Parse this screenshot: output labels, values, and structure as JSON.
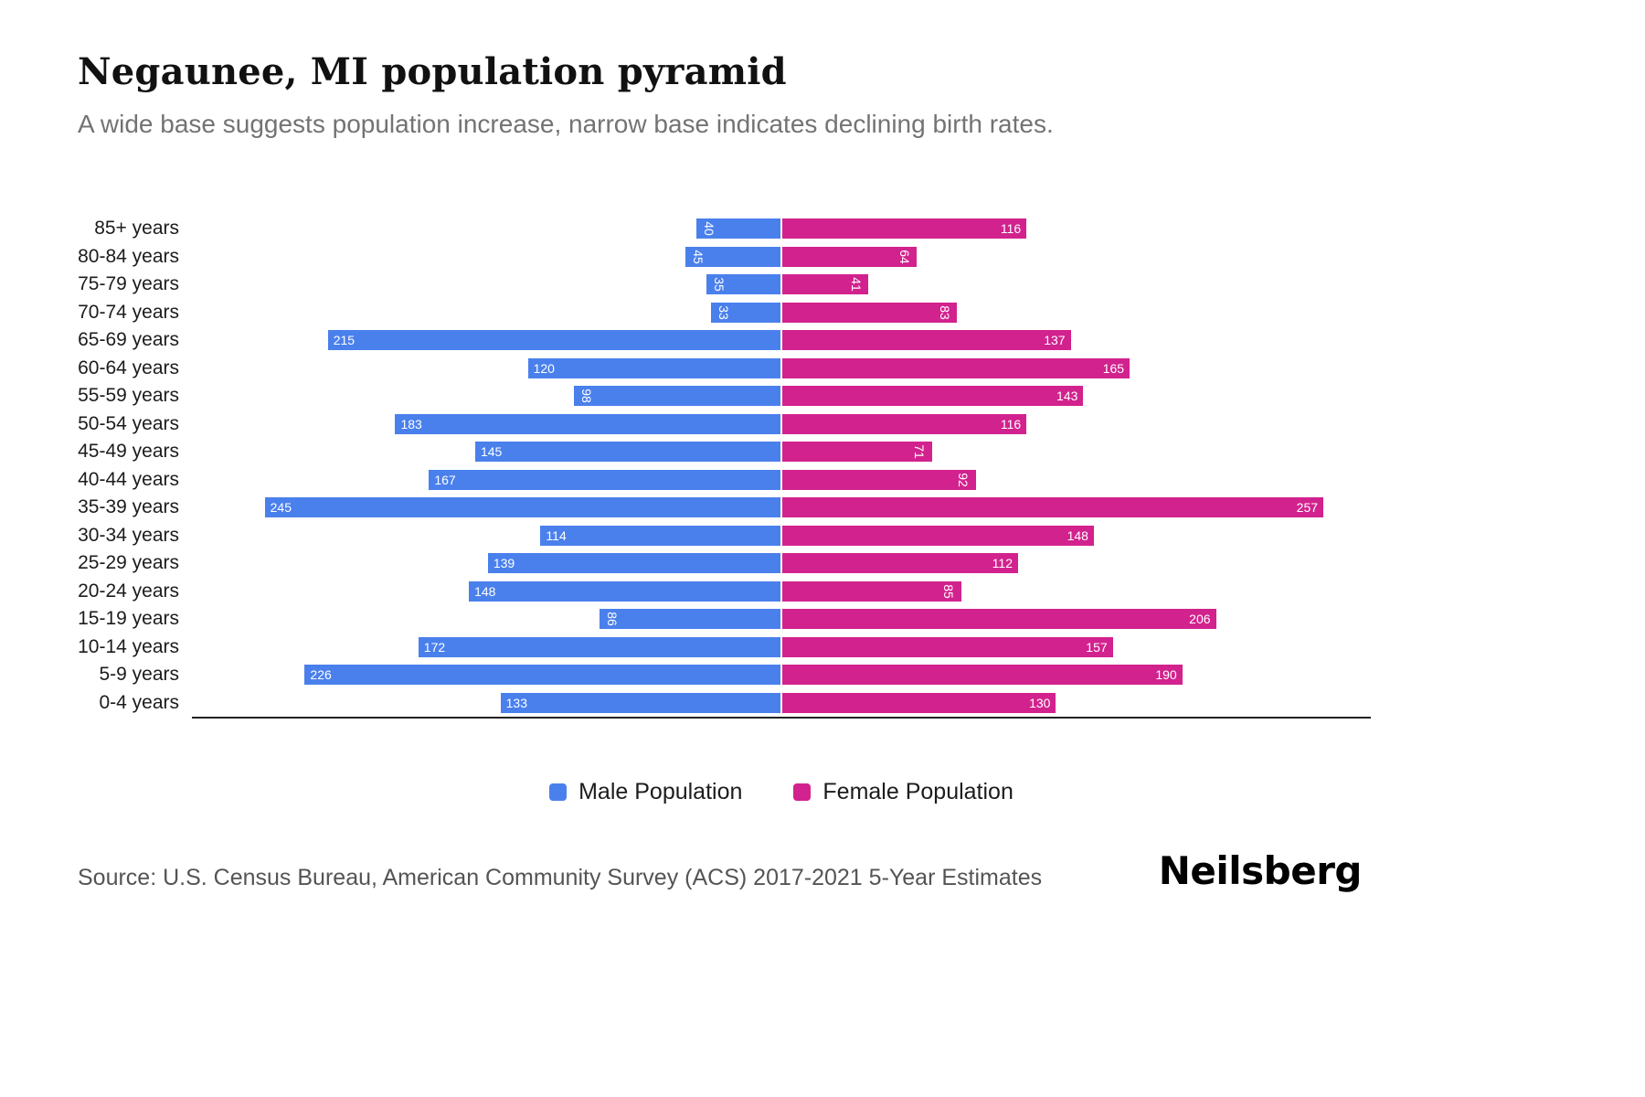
{
  "header": {
    "title": "Negaunee, MI population pyramid",
    "subtitle": "A wide base suggests population increase, narrow base indicates declining birth rates."
  },
  "chart_data": {
    "type": "bar",
    "subtype": "population-pyramid",
    "orientation": "horizontal",
    "title": "Negaunee, MI population pyramid",
    "categories": [
      "85+ years",
      "80-84 years",
      "75-79 years",
      "70-74 years",
      "65-69 years",
      "60-64 years",
      "55-59 years",
      "50-54 years",
      "45-49 years",
      "40-44 years",
      "35-39 years",
      "30-34 years",
      "25-29 years",
      "20-24 years",
      "15-19 years",
      "10-14 years",
      "5-9 years",
      "0-4 years"
    ],
    "series": [
      {
        "name": "Male Population",
        "color": "#4a80ec",
        "values": [
          40,
          45,
          35,
          33,
          215,
          120,
          98,
          183,
          145,
          167,
          245,
          114,
          139,
          148,
          86,
          172,
          226,
          133
        ]
      },
      {
        "name": "Female Population",
        "color": "#d2228e",
        "values": [
          116,
          64,
          41,
          83,
          137,
          165,
          143,
          116,
          71,
          92,
          257,
          148,
          112,
          85,
          206,
          157,
          190,
          130
        ]
      }
    ],
    "axis_max": 280,
    "grid": "off",
    "legend_position": "bottom",
    "value_label_style": "inside outer end, white, rotated 90deg when value < 100"
  },
  "footer": {
    "source": "Source: U.S. Census Bureau, American Community Survey (ACS) 2017-2021 5-Year Estimates",
    "brand": "Neilsberg"
  }
}
